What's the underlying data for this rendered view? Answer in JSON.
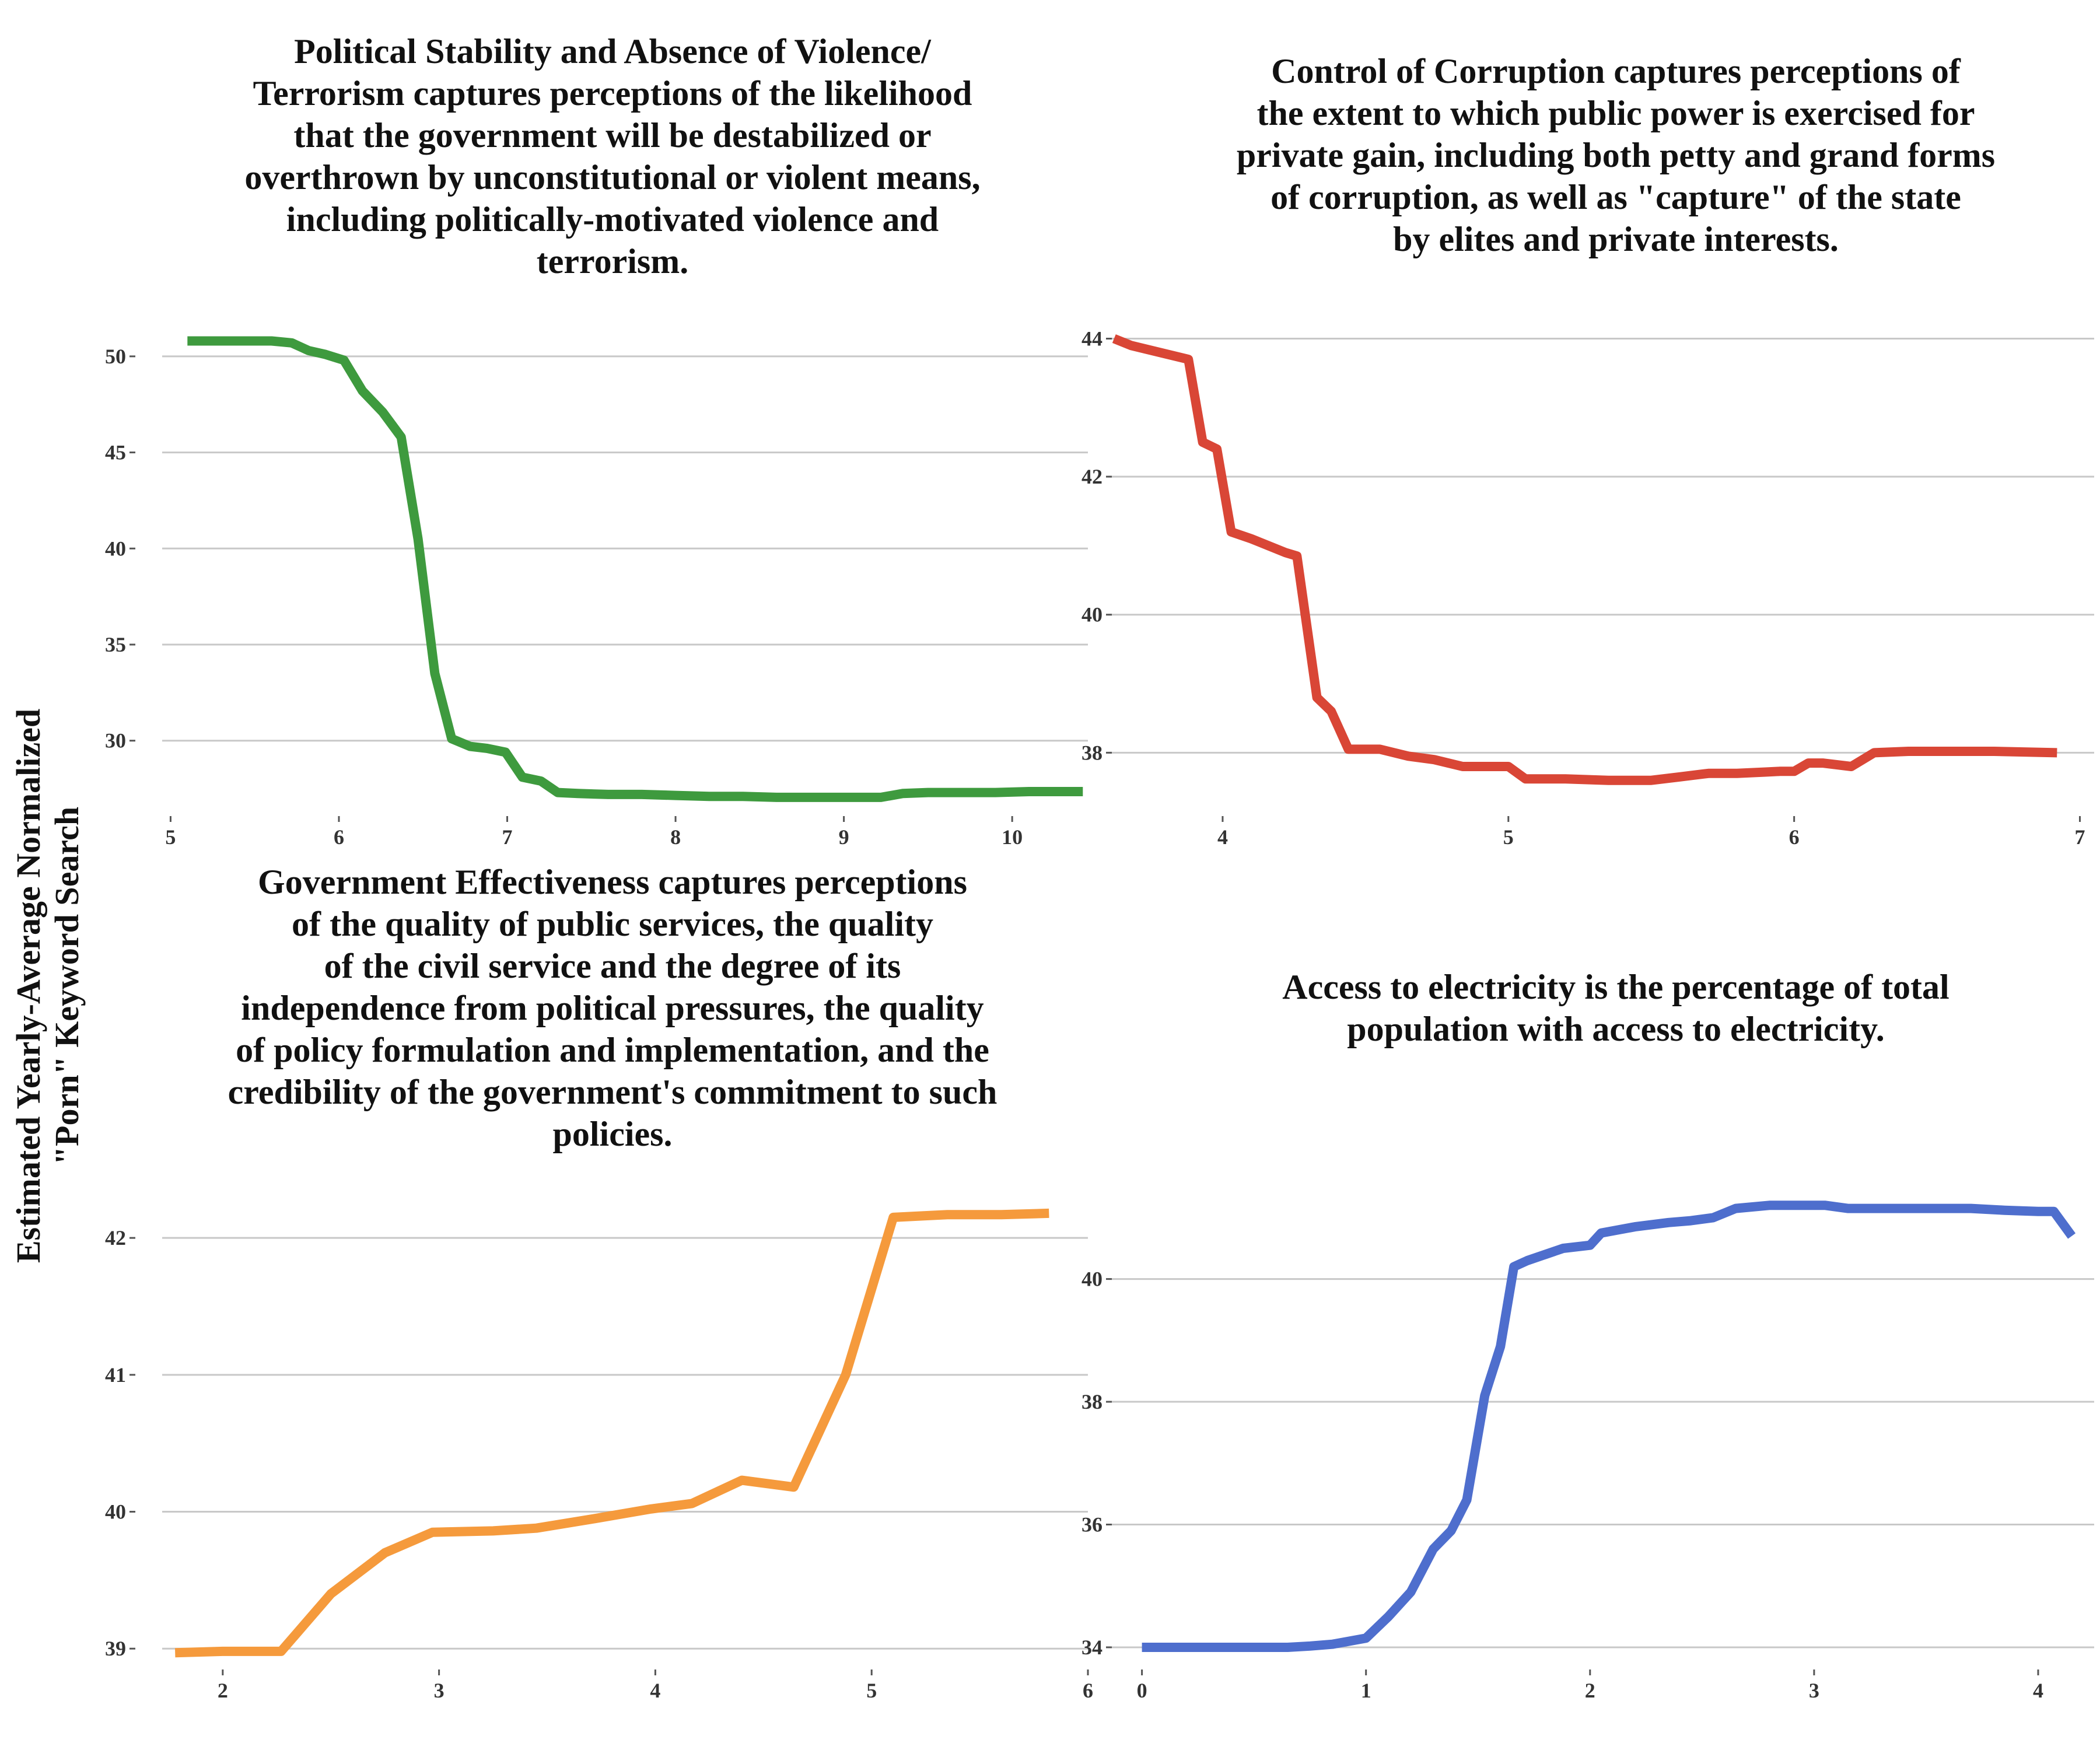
{
  "y_axis_label": [
    "Estimated Yearly-Average Normalized",
    "\"Porn\" Keyword Search"
  ],
  "chart_data": [
    {
      "type": "line",
      "title": [
        "Political Stability and Absence of Violence/",
        "Terrorism captures perceptions of the likelihood",
        "that the government will be destabilized or",
        "overthrown by unconstitutional or violent means,",
        "including politically-motivated violence and",
        "terrorism."
      ],
      "xlabel": "",
      "ylabel": "",
      "color": "#3e9a3e",
      "xlim": [
        4.95,
        10.45
      ],
      "ylim": [
        26.5,
        52
      ],
      "xticks": [
        5,
        6,
        7,
        8,
        9,
        10
      ],
      "yticks": [
        30,
        35,
        40,
        45,
        50
      ],
      "x": [
        5.1,
        5.3,
        5.5,
        5.6,
        5.72,
        5.82,
        5.92,
        6.03,
        6.14,
        6.26,
        6.37,
        6.47,
        6.57,
        6.67,
        6.78,
        6.88,
        6.99,
        7.09,
        7.2,
        7.3,
        7.42,
        7.6,
        7.8,
        8.0,
        8.2,
        8.4,
        8.6,
        8.8,
        9.0,
        9.22,
        9.35,
        9.5,
        9.7,
        9.9,
        10.1,
        10.3,
        10.42
      ],
      "y": [
        50.8,
        50.8,
        50.8,
        50.8,
        50.7,
        50.3,
        50.1,
        49.8,
        48.2,
        47.1,
        45.8,
        40.5,
        33.5,
        30.1,
        29.7,
        29.6,
        29.4,
        28.1,
        27.9,
        27.3,
        27.25,
        27.2,
        27.2,
        27.15,
        27.1,
        27.1,
        27.05,
        27.05,
        27.05,
        27.05,
        27.25,
        27.3,
        27.3,
        27.3,
        27.35,
        27.35,
        27.35
      ]
    },
    {
      "type": "line",
      "title": [
        "Control of Corruption captures perceptions of",
        "the extent to which public power is exercised for",
        "private gain, including both petty and grand forms",
        "of corruption, as well as \"capture\" of the state",
        "by elites and private interests."
      ],
      "xlabel": "",
      "ylabel": "",
      "color": "#d94636",
      "xlim": [
        3.6,
        7.05
      ],
      "ylim": [
        37.2,
        44.3
      ],
      "xticks": [
        4,
        5,
        6,
        7
      ],
      "yticks": [
        38,
        40,
        42,
        44
      ],
      "x": [
        3.62,
        3.68,
        3.78,
        3.88,
        3.93,
        3.98,
        4.03,
        4.1,
        4.22,
        4.26,
        4.33,
        4.38,
        4.44,
        4.55,
        4.65,
        4.74,
        4.84,
        4.95,
        5.0,
        5.06,
        5.2,
        5.35,
        5.5,
        5.6,
        5.7,
        5.8,
        5.9,
        5.95,
        6.0,
        6.05,
        6.1,
        6.2,
        6.28,
        6.4,
        6.55,
        6.7,
        6.92
      ],
      "y": [
        44.0,
        43.9,
        43.8,
        43.7,
        42.5,
        42.4,
        41.2,
        41.1,
        40.9,
        40.85,
        38.8,
        38.6,
        38.05,
        38.05,
        37.95,
        37.9,
        37.8,
        37.8,
        37.8,
        37.62,
        37.62,
        37.6,
        37.6,
        37.65,
        37.7,
        37.7,
        37.72,
        37.73,
        37.73,
        37.85,
        37.85,
        37.8,
        38.0,
        38.02,
        38.02,
        38.02,
        38.0
      ]
    },
    {
      "type": "line",
      "title": [
        "Government Effectiveness captures perceptions",
        "of the quality of public services, the quality",
        "of the civil service and the degree of its",
        "independence from political pressures, the quality",
        "of policy formulation and implementation, and the",
        "credibility of the government's commitment to such",
        "policies."
      ],
      "xlabel": "",
      "ylabel": "",
      "color": "#f59a3c",
      "xlim": [
        1.72,
        6.0
      ],
      "ylim": [
        38.92,
        42.35
      ],
      "xticks": [
        2,
        3,
        4,
        5,
        6
      ],
      "yticks": [
        39,
        40,
        41,
        42
      ],
      "x": [
        1.78,
        2.0,
        2.27,
        2.5,
        2.75,
        2.97,
        3.25,
        3.45,
        3.72,
        3.98,
        4.17,
        4.4,
        4.64,
        4.88,
        5.1,
        5.35,
        5.6,
        5.82
      ],
      "y": [
        38.97,
        38.98,
        38.98,
        39.4,
        39.7,
        39.85,
        39.86,
        39.88,
        39.95,
        40.02,
        40.06,
        40.23,
        40.18,
        41.0,
        42.15,
        42.17,
        42.17,
        42.18
      ]
    },
    {
      "type": "line",
      "title": [
        "Access to electricity is the percentage of total",
        "population with access to electricity."
      ],
      "xlabel": "",
      "ylabel": "",
      "color": "#4e6ecd",
      "xlim": [
        -0.15,
        4.25
      ],
      "ylim": [
        33.8,
        41.45
      ],
      "xticks": [
        0,
        1,
        2,
        3,
        4
      ],
      "yticks": [
        34,
        36,
        38,
        40
      ],
      "x": [
        0.0,
        0.2,
        0.4,
        0.55,
        0.65,
        0.75,
        0.85,
        1.0,
        1.1,
        1.2,
        1.3,
        1.38,
        1.45,
        1.53,
        1.6,
        1.66,
        1.72,
        1.8,
        1.88,
        2.0,
        2.05,
        2.2,
        2.35,
        2.45,
        2.55,
        2.65,
        2.8,
        2.95,
        3.05,
        3.15,
        3.3,
        3.5,
        3.7,
        3.85,
        4.0,
        4.07,
        4.15
      ],
      "y": [
        34.0,
        34.0,
        34.0,
        34.0,
        34.0,
        34.02,
        34.05,
        34.15,
        34.5,
        34.9,
        35.6,
        35.9,
        36.4,
        38.1,
        38.9,
        40.2,
        40.3,
        40.4,
        40.5,
        40.55,
        40.75,
        40.85,
        40.92,
        40.95,
        41.0,
        41.15,
        41.2,
        41.2,
        41.2,
        41.15,
        41.15,
        41.15,
        41.15,
        41.12,
        41.1,
        41.1,
        40.7
      ]
    }
  ]
}
